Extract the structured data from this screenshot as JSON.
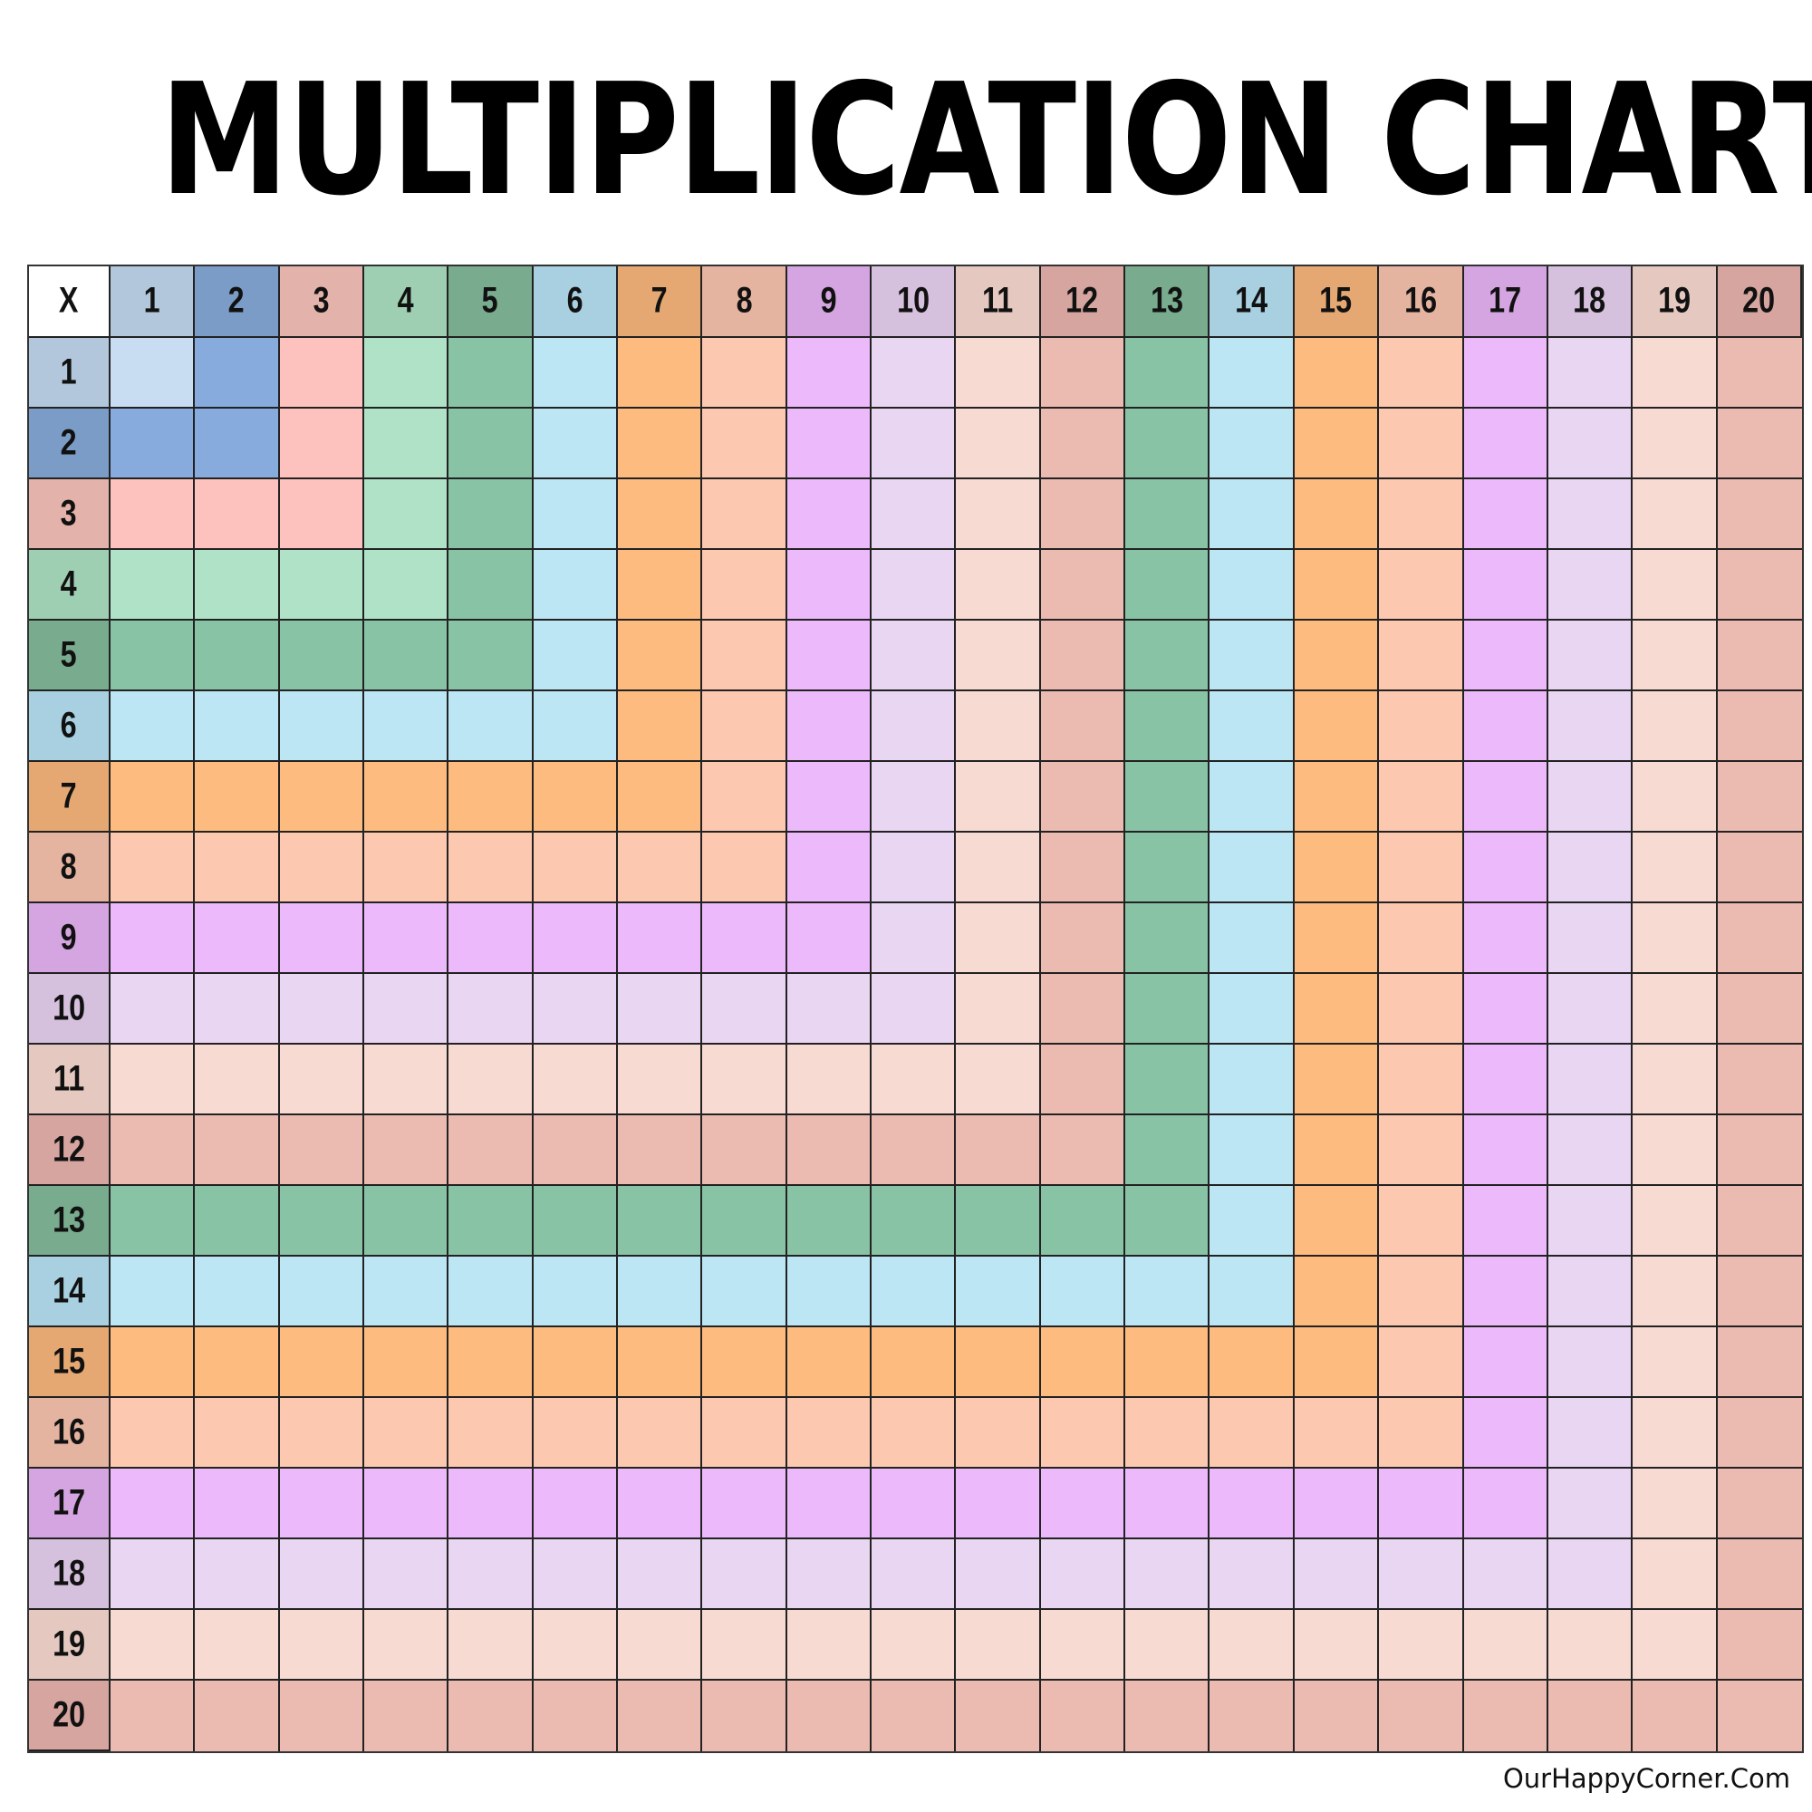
{
  "title": "MULTIPLICATION CHART",
  "footer": "OurHappyCorner.Com",
  "chart_data": {
    "type": "table",
    "title": "MULTIPLICATION CHART",
    "corner_label": "X",
    "column_headers": [
      "1",
      "2",
      "3",
      "4",
      "5",
      "6",
      "7",
      "8",
      "9",
      "10",
      "11",
      "12",
      "13",
      "14",
      "15",
      "16",
      "17",
      "18",
      "19",
      "20"
    ],
    "row_headers": [
      "1",
      "2",
      "3",
      "4",
      "5",
      "6",
      "7",
      "8",
      "9",
      "10",
      "11",
      "12",
      "13",
      "14",
      "15",
      "16",
      "17",
      "18",
      "19",
      "20"
    ],
    "cell_values": "blank",
    "coloring": "cell color determined by max(row, column)",
    "header_colors": [
      "#b3c7dc",
      "#7a9cc6",
      "#e3b2ab",
      "#9fcfb3",
      "#79ab8e",
      "#a8d0e0",
      "#e5a873",
      "#e5b4a0",
      "#d4a5e0",
      "#d5c0dd",
      "#e5c9c0",
      "#d6a59f",
      "#79ab8e",
      "#a8d0e0",
      "#e5a873",
      "#e5b4a0",
      "#d4a5e0",
      "#d5c0dd",
      "#e5c9c0",
      "#d6a59f"
    ],
    "cell_colors": [
      "#c8dcf2",
      "#88abdd",
      "#fdc2bd",
      "#b0e2c8",
      "#89c3a5",
      "#bde6f5",
      "#fdbb80",
      "#fdc8b0",
      "#ecbafa",
      "#e9d6f2",
      "#f7dad1",
      "#ebbab1",
      "#89c3a5",
      "#bde6f5",
      "#fdbb80",
      "#fdc8b0",
      "#ecbafa",
      "#e9d6f2",
      "#f7dad1",
      "#ebbab1"
    ]
  }
}
